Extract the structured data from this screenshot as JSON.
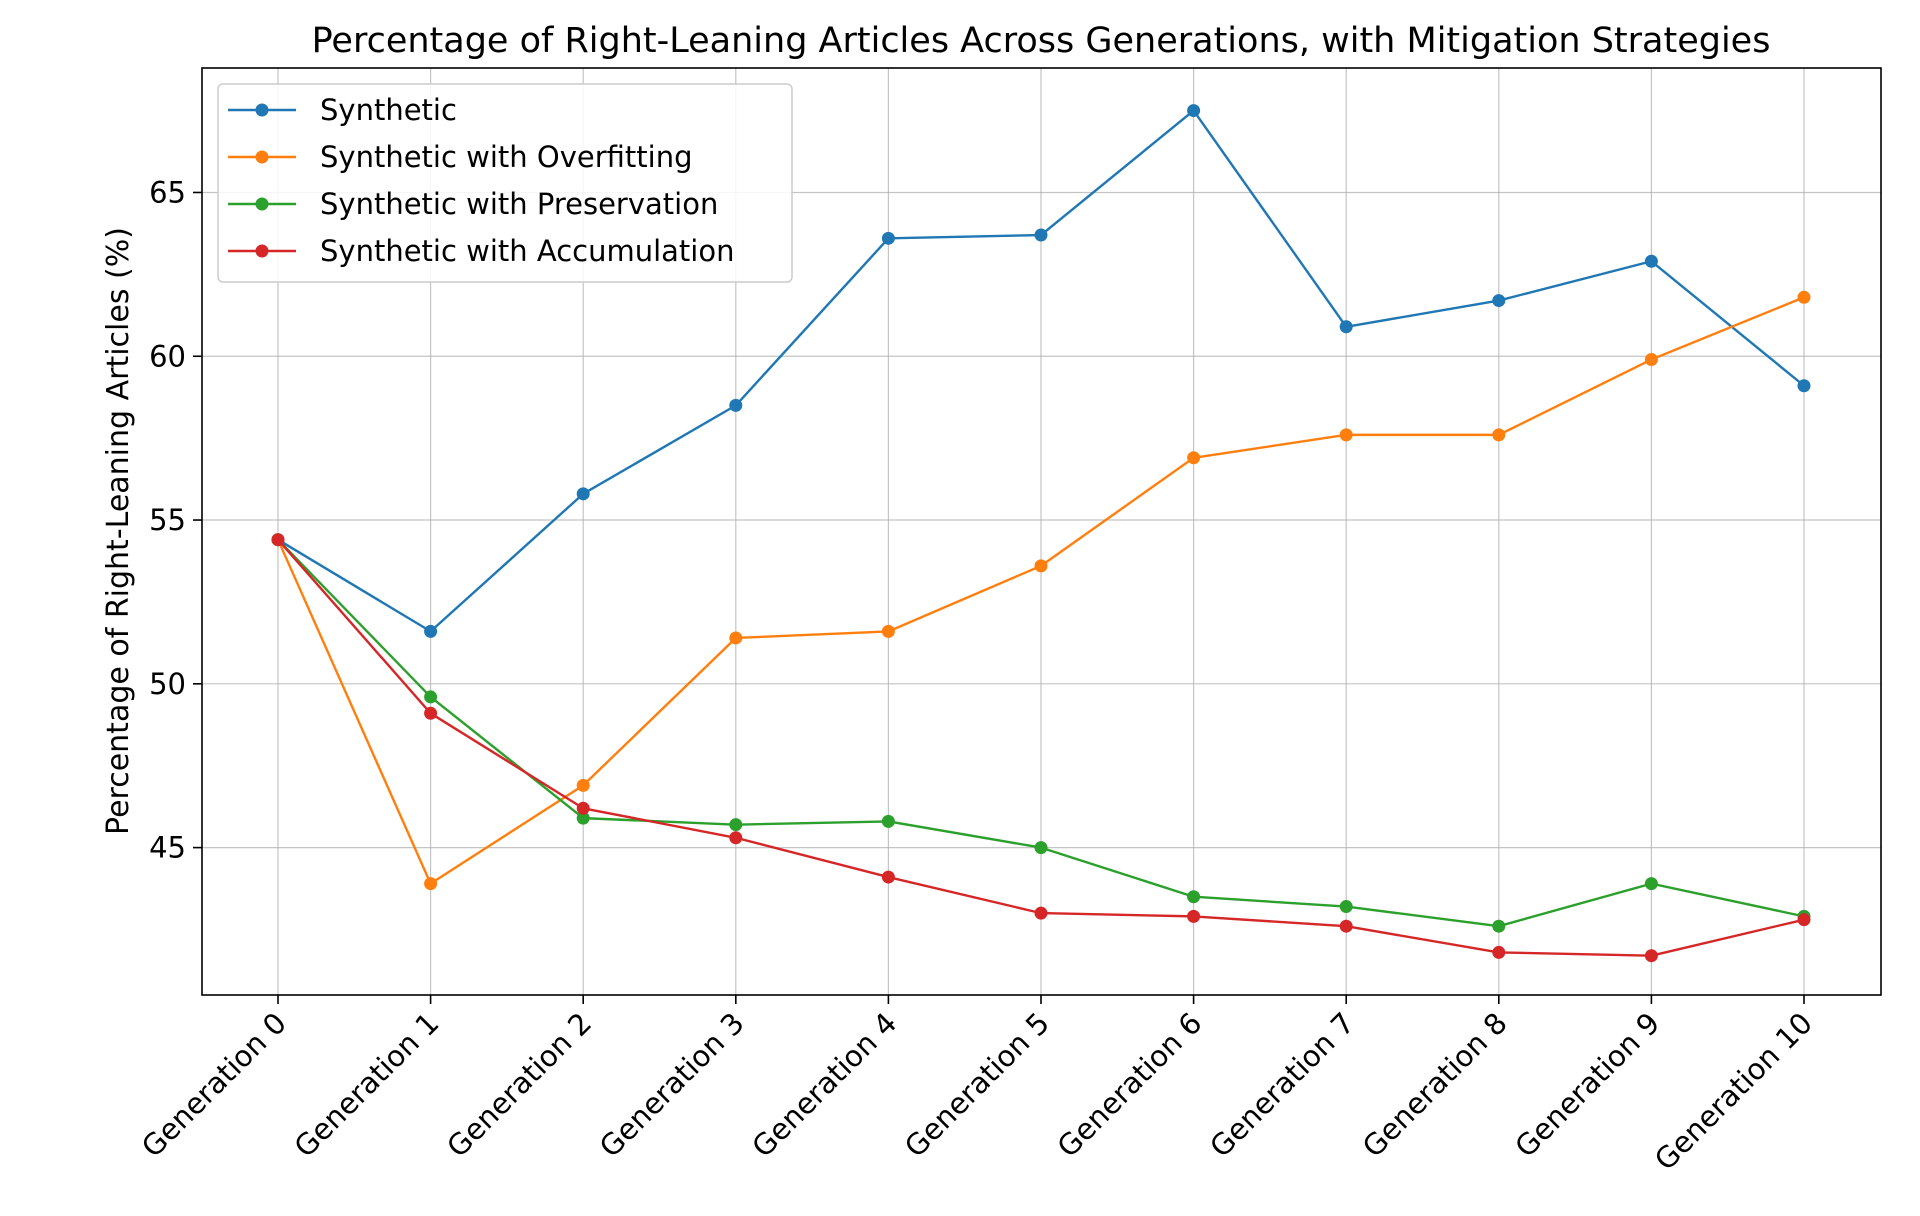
{
  "chart_data": {
    "type": "line",
    "title": "Percentage of Right-Leaning Articles Across Generations, with Mitigation Strategies",
    "xlabel": "",
    "ylabel": "Percentage of Right-Leaning Articles (%)",
    "categories": [
      "Generation 0",
      "Generation 1",
      "Generation 2",
      "Generation 3",
      "Generation 4",
      "Generation 5",
      "Generation 6",
      "Generation 7",
      "Generation 8",
      "Generation 9",
      "Generation 10"
    ],
    "ylim": [
      40.5,
      68.8
    ],
    "yticks": [
      45,
      50,
      55,
      60,
      65
    ],
    "grid": true,
    "legend_position": "top-left",
    "series": [
      {
        "name": "Synthetic",
        "color": "#1f77b4",
        "values": [
          54.4,
          51.6,
          55.8,
          58.5,
          63.6,
          63.7,
          67.5,
          60.9,
          61.7,
          62.9,
          59.1
        ]
      },
      {
        "name": "Synthetic with Overfitting",
        "color": "#ff7f0e",
        "values": [
          54.4,
          43.9,
          46.9,
          51.4,
          51.6,
          53.6,
          56.9,
          57.6,
          57.6,
          59.9,
          61.8
        ]
      },
      {
        "name": "Synthetic with Preservation",
        "color": "#2ca02c",
        "values": [
          54.4,
          49.6,
          45.9,
          45.7,
          45.8,
          45.0,
          43.5,
          43.2,
          42.6,
          43.9,
          42.9
        ]
      },
      {
        "name": "Synthetic with Accumulation",
        "color": "#d62728",
        "values": [
          54.4,
          49.1,
          46.2,
          45.3,
          44.1,
          43.0,
          42.9,
          42.6,
          41.8,
          41.7,
          42.8
        ]
      }
    ]
  }
}
